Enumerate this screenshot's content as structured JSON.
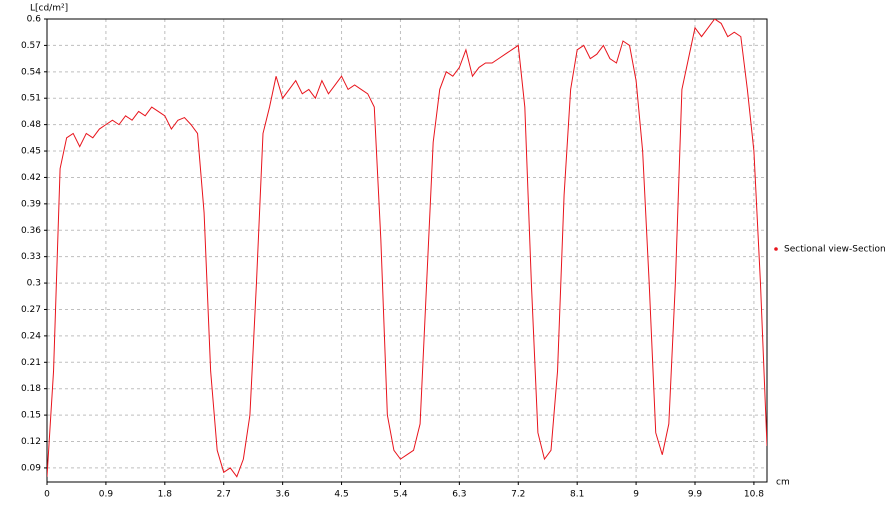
{
  "chart_data": {
    "type": "line",
    "y_label": "L[cd/m²]",
    "x_label": "cm",
    "x": [
      0,
      0.1,
      0.2,
      0.3,
      0.4,
      0.5,
      0.6,
      0.7,
      0.8,
      0.9,
      1.0,
      1.1,
      1.2,
      1.3,
      1.4,
      1.5,
      1.6,
      1.7,
      1.8,
      1.9,
      2.0,
      2.1,
      2.2,
      2.3,
      2.4,
      2.5,
      2.6,
      2.7,
      2.8,
      2.9,
      3.0,
      3.1,
      3.2,
      3.3,
      3.4,
      3.5,
      3.6,
      3.7,
      3.8,
      3.9,
      4.0,
      4.1,
      4.2,
      4.3,
      4.4,
      4.5,
      4.6,
      4.7,
      4.8,
      4.9,
      5.0,
      5.1,
      5.2,
      5.3,
      5.4,
      5.5,
      5.6,
      5.7,
      5.8,
      5.9,
      6.0,
      6.1,
      6.2,
      6.3,
      6.4,
      6.5,
      6.6,
      6.7,
      6.8,
      6.9,
      7.0,
      7.1,
      7.2,
      7.3,
      7.4,
      7.5,
      7.6,
      7.7,
      7.8,
      7.9,
      8.0,
      8.1,
      8.2,
      8.3,
      8.4,
      8.5,
      8.6,
      8.7,
      8.8,
      8.9,
      9.0,
      9.1,
      9.2,
      9.3,
      9.4,
      9.5,
      9.6,
      9.7,
      9.8,
      9.9,
      10.0,
      10.1,
      10.2,
      10.3,
      10.4,
      10.5,
      10.6,
      10.7,
      10.8,
      10.9,
      11.0
    ],
    "series": [
      {
        "name": "Sectional view-Section",
        "color": "#e8141c",
        "values": [
          0.08,
          0.2,
          0.43,
          0.465,
          0.47,
          0.455,
          0.47,
          0.465,
          0.475,
          0.48,
          0.485,
          0.48,
          0.49,
          0.485,
          0.495,
          0.49,
          0.5,
          0.495,
          0.49,
          0.475,
          0.485,
          0.488,
          0.48,
          0.47,
          0.38,
          0.2,
          0.11,
          0.085,
          0.09,
          0.08,
          0.1,
          0.15,
          0.3,
          0.47,
          0.5,
          0.535,
          0.51,
          0.52,
          0.53,
          0.515,
          0.52,
          0.51,
          0.53,
          0.515,
          0.525,
          0.535,
          0.52,
          0.525,
          0.52,
          0.515,
          0.5,
          0.35,
          0.15,
          0.11,
          0.1,
          0.105,
          0.11,
          0.14,
          0.3,
          0.46,
          0.52,
          0.54,
          0.535,
          0.545,
          0.565,
          0.535,
          0.545,
          0.55,
          0.55,
          0.555,
          0.56,
          0.565,
          0.57,
          0.5,
          0.3,
          0.13,
          0.1,
          0.11,
          0.2,
          0.4,
          0.52,
          0.565,
          0.57,
          0.555,
          0.56,
          0.57,
          0.555,
          0.55,
          0.575,
          0.57,
          0.53,
          0.45,
          0.3,
          0.13,
          0.105,
          0.14,
          0.3,
          0.52,
          0.555,
          0.59,
          0.58,
          0.59,
          0.6,
          0.595,
          0.58,
          0.585,
          0.58,
          0.52,
          0.45,
          0.3,
          0.115
        ]
      }
    ],
    "xlim": [
      0,
      11
    ],
    "xticks": [
      0,
      0.9,
      1.8,
      2.7,
      3.6,
      4.5,
      5.4,
      6.3,
      7.2,
      8.1,
      9,
      9.9,
      10.8
    ],
    "ylim": [
      0.074,
      0.6
    ],
    "yticks": [
      0.09,
      0.12,
      0.15,
      0.18,
      0.21,
      0.24,
      0.27,
      0.3,
      0.33,
      0.36,
      0.39,
      0.42,
      0.45,
      0.48,
      0.51,
      0.54,
      0.57,
      0.6
    ],
    "grid": true,
    "legend": "right"
  }
}
